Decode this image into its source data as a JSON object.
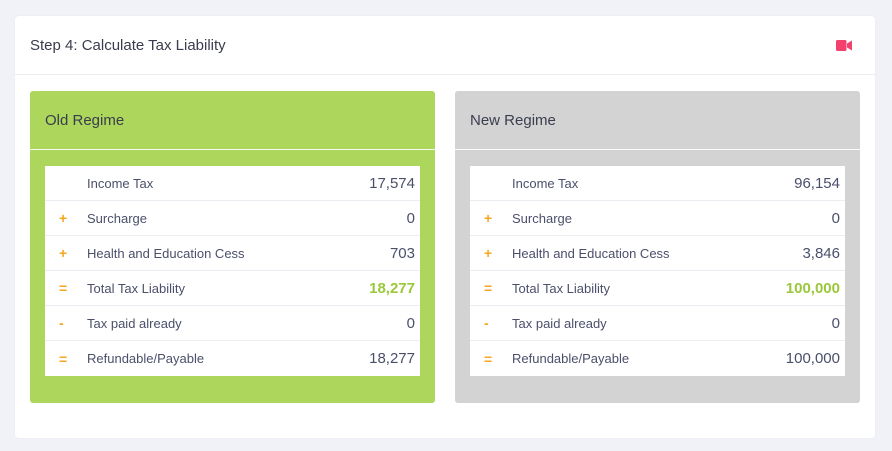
{
  "card": {
    "title": "Step 4: Calculate Tax Liability",
    "video_icon": "video-camera-icon",
    "video_color": "#f1416c"
  },
  "old_regime": {
    "title": "Old Regime",
    "color": "#add65c",
    "rows": [
      {
        "op": "",
        "label": "Income Tax",
        "value": "17,574"
      },
      {
        "op": "+",
        "label": "Surcharge",
        "value": "0"
      },
      {
        "op": "+",
        "label": "Health and Education Cess",
        "value": "703"
      },
      {
        "op": "=",
        "label": "Total Tax Liability",
        "value": "18,277"
      },
      {
        "op": "-",
        "label": "Tax paid already",
        "value": "0"
      },
      {
        "op": "=",
        "label": "Refundable/Payable",
        "value": "18,277"
      }
    ]
  },
  "new_regime": {
    "title": "New Regime",
    "color": "#d3d3d3",
    "rows": [
      {
        "op": "",
        "label": "Income Tax",
        "value": "96,154"
      },
      {
        "op": "+",
        "label": "Surcharge",
        "value": "0"
      },
      {
        "op": "+",
        "label": "Health and Education Cess",
        "value": "3,846"
      },
      {
        "op": "=",
        "label": "Total Tax Liability",
        "value": "100,000"
      },
      {
        "op": "-",
        "label": "Tax paid already",
        "value": "0"
      },
      {
        "op": "=",
        "label": "Refundable/Payable",
        "value": "100,000"
      }
    ]
  },
  "colors": {
    "operator": "#f5a623",
    "highlight": "#9ac83a"
  }
}
